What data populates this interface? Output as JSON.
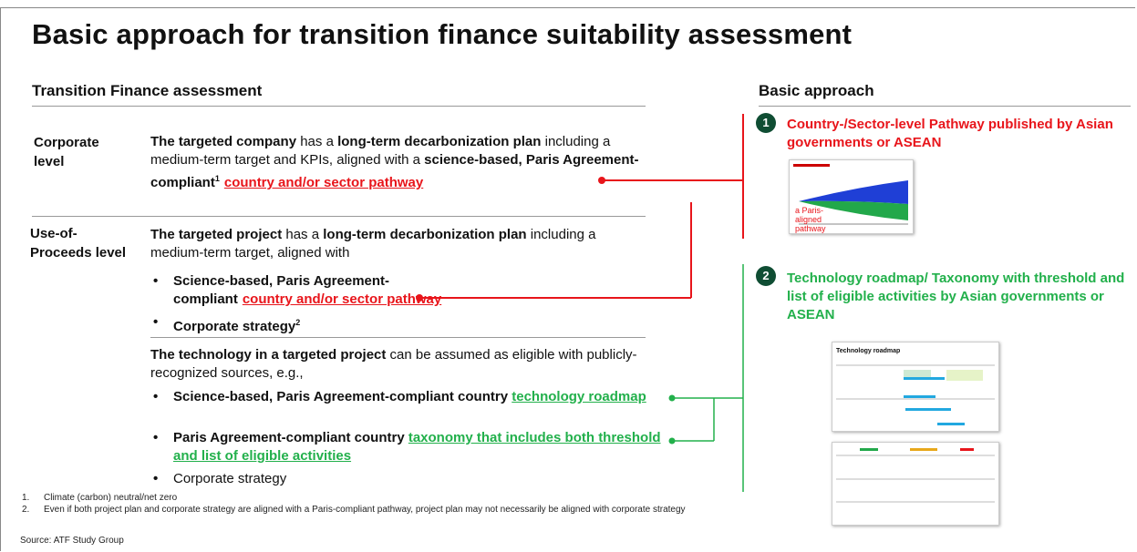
{
  "title": "Basic approach for transition finance suitability assessment",
  "left_heading": "Transition Finance assessment",
  "right_heading": "Basic approach",
  "corporate": {
    "label": "Corporate level",
    "segments": [
      {
        "text": "The targeted company",
        "style": "bold"
      },
      {
        "text": " has a "
      },
      {
        "text": "long-term decarbonization plan",
        "style": "bold"
      },
      {
        "text": " including a medium-term target and KPIs, aligned with a "
      },
      {
        "text": "science-based, Paris Agreement-compliant",
        "style": "bold"
      },
      {
        "text": "1",
        "style": "sup"
      },
      {
        "text": "country and/or sector pathway",
        "style": "red-link"
      }
    ]
  },
  "use_of_proceeds": {
    "label": "Use-of-Proceeds level",
    "intro": [
      {
        "text": "The targeted project",
        "style": "bold"
      },
      {
        "text": " has a "
      },
      {
        "text": "long-term decarbonization plan",
        "style": "bold"
      },
      {
        "text": " including a medium-term target, aligned with"
      }
    ],
    "bullets": [
      [
        {
          "text": "Science-based, Paris Agreement-compliant",
          "style": "bold"
        },
        {
          "text": "country and/or sector pathway",
          "style": "red-link"
        }
      ],
      [
        {
          "text": "Corporate strategy",
          "style": "bold"
        },
        {
          "text": "2",
          "style": "sup"
        }
      ]
    ],
    "technology_intro": [
      {
        "text": "The technology in a targeted project",
        "style": "bold"
      },
      {
        "text": " can be assumed as eligible with publicly-recognized sources, e.g.,"
      }
    ],
    "technology_bullets": [
      [
        {
          "text": "Science-based, Paris Agreement-compliant country ",
          "style": "bold"
        },
        {
          "text": "technology roadmap",
          "style": "green-link"
        }
      ],
      [
        {
          "text": "Paris Agreement-compliant country ",
          "style": "bold"
        },
        {
          "text": "taxonomy that includes both threshold and list of eligible activities",
          "style": "green-link"
        }
      ],
      [
        {
          "text": "Corporate strategy"
        }
      ]
    ]
  },
  "approaches": [
    {
      "number": "1",
      "text": "Country-/Sector-level Pathway published by Asian governments or ASEAN",
      "color": "#e8151b",
      "thumbnail_label": "a Paris-aligned pathway"
    },
    {
      "number": "2",
      "text": "Technology roadmap/ Taxonomy with threshold and list of eligible activities by Asian governments or ASEAN",
      "color": "#22b04b",
      "thumbnail_label": "Technology roadmap"
    }
  ],
  "footnotes": [
    {
      "number": "1.",
      "text": "Climate (carbon) neutral/net zero"
    },
    {
      "number": "2.",
      "text": "Even if both project plan and corporate strategy are aligned with a Paris-compliant pathway, project plan may not necessarily be aligned with corporate strategy"
    }
  ],
  "source": "Source: ATF Study Group"
}
